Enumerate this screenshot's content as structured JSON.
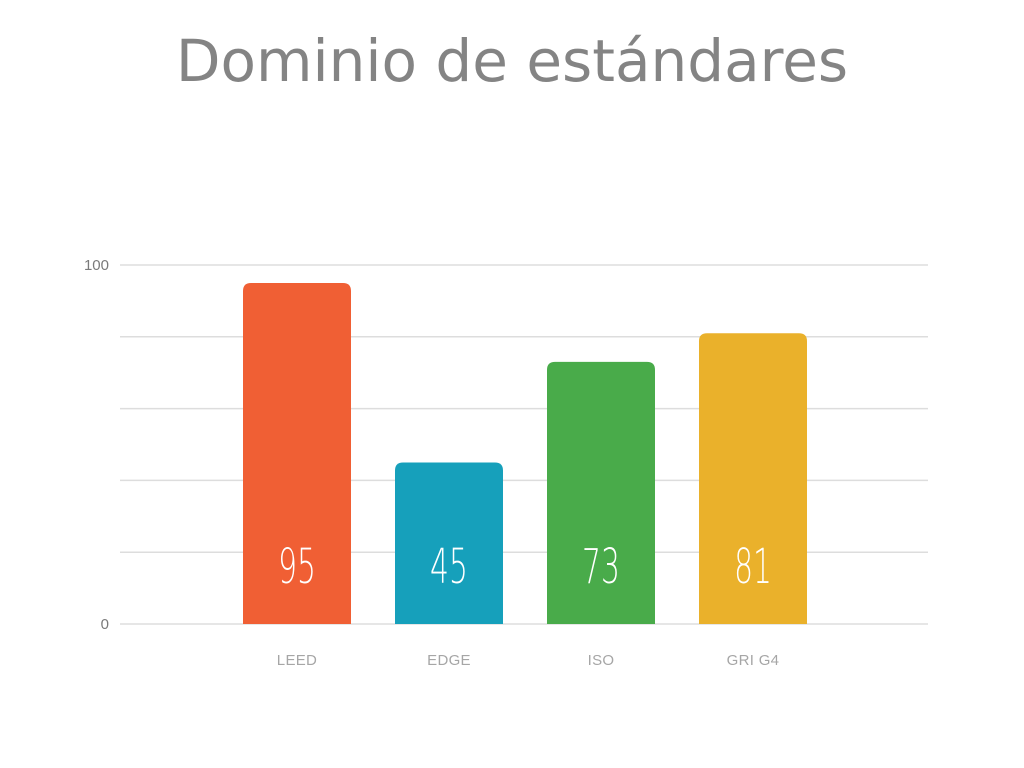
{
  "title": "Dominio de estándares",
  "chart_data": {
    "type": "bar",
    "title": "Dominio de estándares",
    "categories": [
      "LEED",
      "EDGE",
      "ISO",
      "GRI G4"
    ],
    "values": [
      95,
      45,
      73,
      81
    ],
    "data_labels": [
      "95",
      "45",
      "73",
      "81"
    ],
    "colors": [
      "#f05f34",
      "#16a0bb",
      "#49ab4a",
      "#eab12b"
    ],
    "ylim": [
      0,
      100
    ],
    "yticks": [
      0,
      100
    ],
    "ytick_labels": [
      "0",
      "100"
    ],
    "grid_step": 20,
    "grid": true,
    "gridline_color": "#dddddd",
    "xlabel": "",
    "ylabel": "",
    "legend": "none"
  }
}
